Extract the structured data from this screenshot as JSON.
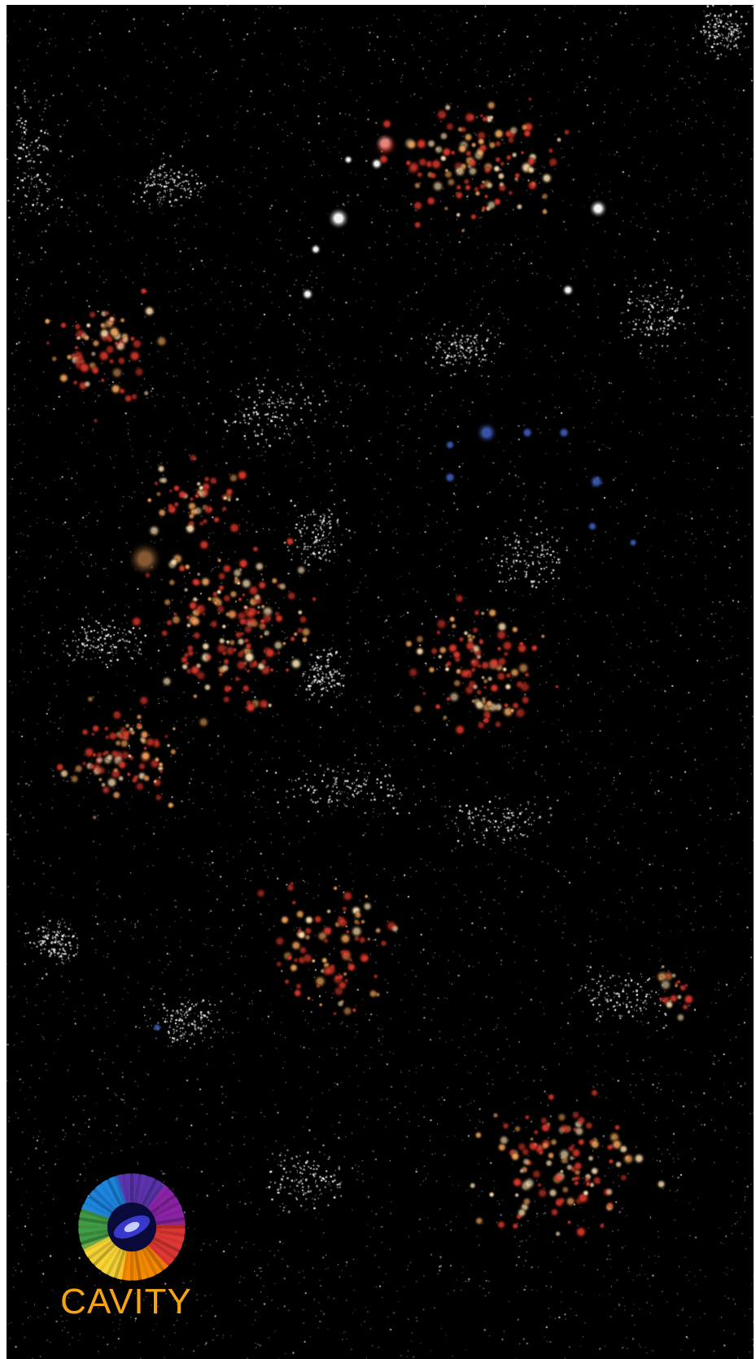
{
  "image": {
    "subject": "galaxy-sky-map",
    "background_color": "#000000",
    "star_palette": {
      "white": "#ffffff",
      "red": "#e0392b",
      "orange": "#f2a35a",
      "cream": "#ffe0b0",
      "blue": "#4a6fe0"
    }
  },
  "logo": {
    "text": "CAVITY",
    "text_color": "#f5a414",
    "icon": "rainbow-ring-galaxy-icon",
    "ring_colors": [
      "#e53935",
      "#fb8c00",
      "#fdd835",
      "#43a047",
      "#1e88e5",
      "#5e35b1",
      "#8e24aa"
    ],
    "center_color": "#3d3ddb"
  }
}
